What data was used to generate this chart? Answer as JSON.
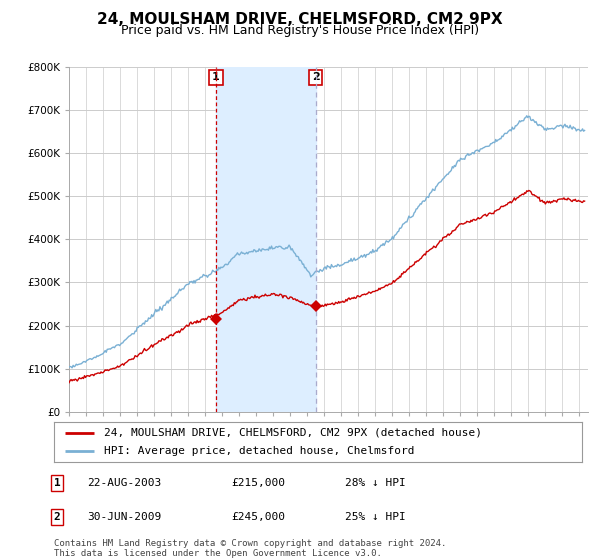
{
  "title": "24, MOULSHAM DRIVE, CHELMSFORD, CM2 9PX",
  "subtitle": "Price paid vs. HM Land Registry's House Price Index (HPI)",
  "ylim": [
    0,
    800000
  ],
  "yticks": [
    0,
    100000,
    200000,
    300000,
    400000,
    500000,
    600000,
    700000,
    800000
  ],
  "ytick_labels": [
    "£0",
    "£100K",
    "£200K",
    "£300K",
    "£400K",
    "£500K",
    "£600K",
    "£700K",
    "£800K"
  ],
  "xlim_start": 1995.0,
  "xlim_end": 2025.5,
  "transaction1_date": 2003.64,
  "transaction1_price": 215000,
  "transaction2_date": 2009.5,
  "transaction2_price": 245000,
  "red_line_color": "#cc0000",
  "blue_line_color": "#7ab0d4",
  "shade_color": "#ddeeff",
  "vline1_color": "#cc0000",
  "vline2_color": "#aaaacc",
  "grid_color": "#cccccc",
  "bg_color": "#ffffff",
  "legend1_text": "24, MOULSHAM DRIVE, CHELMSFORD, CM2 9PX (detached house)",
  "legend2_text": "HPI: Average price, detached house, Chelmsford",
  "table_row1": [
    "1",
    "22-AUG-2003",
    "£215,000",
    "28% ↓ HPI"
  ],
  "table_row2": [
    "2",
    "30-JUN-2009",
    "£245,000",
    "25% ↓ HPI"
  ],
  "footnote1": "Contains HM Land Registry data © Crown copyright and database right 2024.",
  "footnote2": "This data is licensed under the Open Government Licence v3.0.",
  "title_fontsize": 11,
  "subtitle_fontsize": 9,
  "axis_fontsize": 7.5,
  "legend_fontsize": 8
}
